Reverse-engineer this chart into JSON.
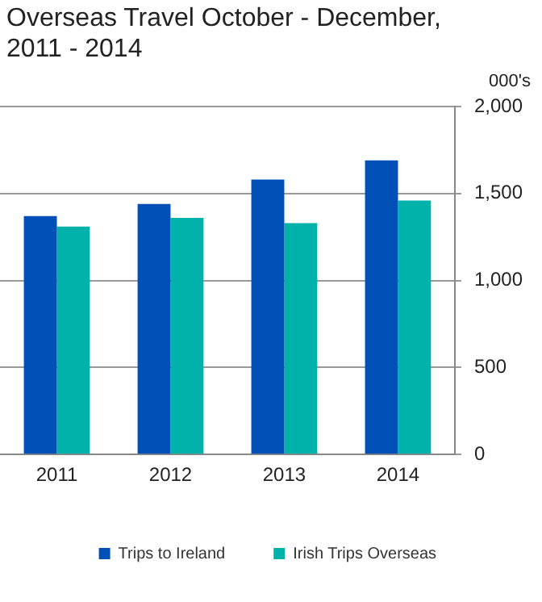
{
  "chart_data": {
    "type": "bar",
    "title": "Overseas Travel October - December, 2011 - 2014",
    "ylabel": "000's",
    "categories": [
      "2011",
      "2012",
      "2013",
      "2014"
    ],
    "series": [
      {
        "name": "Trips to Ireland",
        "color": "#0050b8",
        "values": [
          1370,
          1440,
          1580,
          1690
        ]
      },
      {
        "name": "Irish Trips Overseas",
        "color": "#00b2a9",
        "values": [
          1310,
          1360,
          1330,
          1460
        ]
      }
    ],
    "ylim": [
      0,
      2000
    ],
    "yticks": [
      0,
      500,
      {
        "value": 1000,
        "label": "1,000"
      },
      {
        "value": 1500,
        "label": "1,500"
      },
      {
        "value": 2000,
        "label": "2,000"
      }
    ],
    "grid": "y",
    "legend": "bottom"
  }
}
